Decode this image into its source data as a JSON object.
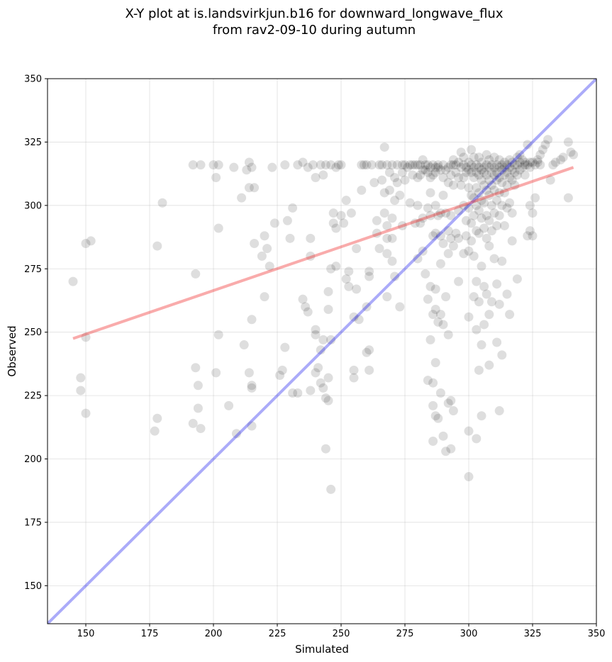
{
  "chart_data": {
    "type": "scatter",
    "title_line1": "X-Y plot at is.landsvirkjun.b16 for downward_longwave_flux",
    "title_line2": "from rav2-09-10 during autumn",
    "xlabel": "Simulated",
    "ylabel": "Observed",
    "xlim": [
      135,
      350
    ],
    "ylim": [
      135,
      350
    ],
    "xticks": [
      150,
      175,
      200,
      225,
      250,
      275,
      300,
      325,
      350
    ],
    "yticks": [
      150,
      175,
      200,
      225,
      250,
      275,
      300,
      325,
      350
    ],
    "grid": true,
    "colors": {
      "points": "#000000",
      "identity_line": "#0000ee",
      "fit_line": "#ee2222"
    },
    "identity_line": {
      "x": [
        135,
        350
      ],
      "y": [
        135,
        350
      ]
    },
    "fit_line": {
      "x": [
        145,
        341
      ],
      "y": [
        247.5,
        315
      ]
    },
    "points": [
      [
        145,
        270
      ],
      [
        150,
        285
      ],
      [
        152,
        286
      ],
      [
        148,
        232
      ],
      [
        148,
        227
      ],
      [
        150,
        248
      ],
      [
        150,
        218
      ],
      [
        178,
        284
      ],
      [
        180,
        301
      ],
      [
        178,
        216
      ],
      [
        177,
        211
      ],
      [
        192,
        316
      ],
      [
        195,
        316
      ],
      [
        200,
        316
      ],
      [
        201,
        311
      ],
      [
        202,
        316
      ],
      [
        193,
        273
      ],
      [
        193,
        236
      ],
      [
        194,
        229
      ],
      [
        194,
        220
      ],
      [
        192,
        214
      ],
      [
        195,
        212
      ],
      [
        202,
        291
      ],
      [
        202,
        249
      ],
      [
        201,
        234
      ],
      [
        206,
        221
      ],
      [
        209,
        210
      ],
      [
        208,
        315
      ],
      [
        211,
        303
      ],
      [
        213,
        314
      ],
      [
        214,
        317
      ],
      [
        214,
        307
      ],
      [
        215,
        315
      ],
      [
        216,
        307
      ],
      [
        216,
        285
      ],
      [
        215,
        255
      ],
      [
        212,
        245
      ],
      [
        214,
        234
      ],
      [
        215,
        229
      ],
      [
        215,
        228
      ],
      [
        215,
        213
      ],
      [
        219,
        280
      ],
      [
        220,
        288
      ],
      [
        220,
        264
      ],
      [
        221,
        283
      ],
      [
        222,
        276
      ],
      [
        223,
        315
      ],
      [
        224,
        293
      ],
      [
        226,
        233
      ],
      [
        227,
        235
      ],
      [
        228,
        244
      ],
      [
        228,
        316
      ],
      [
        229,
        294
      ],
      [
        230,
        287
      ],
      [
        231,
        299
      ],
      [
        231,
        226
      ],
      [
        233,
        226
      ],
      [
        235,
        263
      ],
      [
        236,
        260
      ],
      [
        237,
        258
      ],
      [
        238,
        287
      ],
      [
        238,
        280
      ],
      [
        238,
        227
      ],
      [
        240,
        251
      ],
      [
        240,
        249
      ],
      [
        240,
        234
      ],
      [
        241,
        236
      ],
      [
        242,
        230
      ],
      [
        242,
        243
      ],
      [
        243,
        247
      ],
      [
        243,
        228
      ],
      [
        244,
        224
      ],
      [
        244,
        204
      ],
      [
        245,
        223
      ],
      [
        245,
        232
      ],
      [
        245,
        259
      ],
      [
        245,
        266
      ],
      [
        246,
        275
      ],
      [
        246,
        247
      ],
      [
        247,
        297
      ],
      [
        247,
        293
      ],
      [
        248,
        276
      ],
      [
        248,
        291
      ],
      [
        246,
        188
      ],
      [
        233,
        316
      ],
      [
        235,
        317
      ],
      [
        237,
        315
      ],
      [
        239,
        316
      ],
      [
        240,
        311
      ],
      [
        242,
        316
      ],
      [
        243,
        312
      ],
      [
        244,
        316
      ],
      [
        246,
        316
      ],
      [
        248,
        315
      ],
      [
        249,
        316
      ],
      [
        250,
        316
      ],
      [
        250,
        296
      ],
      [
        251,
        293
      ],
      [
        252,
        302
      ],
      [
        252,
        271
      ],
      [
        253,
        274
      ],
      [
        253,
        268
      ],
      [
        254,
        297
      ],
      [
        255,
        256
      ],
      [
        255,
        235
      ],
      [
        255,
        232
      ],
      [
        256,
        283
      ],
      [
        256,
        267
      ],
      [
        257,
        255
      ],
      [
        258,
        316
      ],
      [
        258,
        306
      ],
      [
        259,
        316
      ],
      [
        260,
        316
      ],
      [
        260,
        260
      ],
      [
        260,
        242
      ],
      [
        261,
        274
      ],
      [
        261,
        272
      ],
      [
        261,
        243
      ],
      [
        261,
        235
      ],
      [
        262,
        316
      ],
      [
        263,
        309
      ],
      [
        264,
        294
      ],
      [
        264,
        289
      ],
      [
        265,
        283
      ],
      [
        265,
        316
      ],
      [
        266,
        316
      ],
      [
        266,
        310
      ],
      [
        267,
        323
      ],
      [
        267,
        305
      ],
      [
        267,
        297
      ],
      [
        268,
        316
      ],
      [
        268,
        292
      ],
      [
        268,
        287
      ],
      [
        268,
        281
      ],
      [
        268,
        264
      ],
      [
        269,
        313
      ],
      [
        269,
        306
      ],
      [
        270,
        316
      ],
      [
        270,
        295
      ],
      [
        270,
        287
      ],
      [
        270,
        278
      ],
      [
        271,
        311
      ],
      [
        271,
        302
      ],
      [
        271,
        272
      ],
      [
        272,
        316
      ],
      [
        272,
        309
      ],
      [
        273,
        304
      ],
      [
        273,
        260
      ],
      [
        274,
        316
      ],
      [
        274,
        313
      ],
      [
        274,
        292
      ],
      [
        275,
        316
      ],
      [
        275,
        310
      ],
      [
        276,
        315
      ],
      [
        277,
        316
      ],
      [
        277,
        301
      ],
      [
        278,
        316
      ],
      [
        278,
        312
      ],
      [
        279,
        316
      ],
      [
        279,
        293
      ],
      [
        280,
        316
      ],
      [
        280,
        311
      ],
      [
        280,
        300
      ],
      [
        280,
        279
      ],
      [
        281,
        316
      ],
      [
        281,
        312
      ],
      [
        281,
        293
      ],
      [
        282,
        318
      ],
      [
        282,
        314
      ],
      [
        282,
        295
      ],
      [
        282,
        282
      ],
      [
        283,
        316
      ],
      [
        283,
        314
      ],
      [
        283,
        273
      ],
      [
        284,
        316
      ],
      [
        284,
        313
      ],
      [
        284,
        299
      ],
      [
        284,
        263
      ],
      [
        284,
        231
      ],
      [
        285,
        315
      ],
      [
        285,
        311
      ],
      [
        285,
        305
      ],
      [
        285,
        296
      ],
      [
        285,
        268
      ],
      [
        285,
        247
      ],
      [
        286,
        316
      ],
      [
        286,
        312
      ],
      [
        286,
        288
      ],
      [
        286,
        257
      ],
      [
        286,
        230
      ],
      [
        286,
        221
      ],
      [
        286,
        207
      ],
      [
        287,
        315
      ],
      [
        287,
        313
      ],
      [
        287,
        300
      ],
      [
        287,
        289
      ],
      [
        287,
        267
      ],
      [
        287,
        259
      ],
      [
        287,
        238
      ],
      [
        287,
        217
      ],
      [
        288,
        316
      ],
      [
        288,
        315
      ],
      [
        288,
        296
      ],
      [
        288,
        254
      ],
      [
        288,
        216
      ],
      [
        289,
        314
      ],
      [
        289,
        297
      ],
      [
        289,
        288
      ],
      [
        289,
        277
      ],
      [
        289,
        257
      ],
      [
        289,
        226
      ],
      [
        290,
        316
      ],
      [
        290,
        311
      ],
      [
        290,
        304
      ],
      [
        290,
        285
      ],
      [
        290,
        253
      ],
      [
        290,
        209
      ],
      [
        291,
        314
      ],
      [
        291,
        297
      ],
      [
        291,
        264
      ],
      [
        291,
        203
      ],
      [
        292,
        315
      ],
      [
        292,
        309
      ],
      [
        292,
        290
      ],
      [
        292,
        281
      ],
      [
        292,
        249
      ],
      [
        292,
        222
      ],
      [
        293,
        316
      ],
      [
        293,
        312
      ],
      [
        293,
        296
      ],
      [
        293,
        287
      ],
      [
        293,
        223
      ],
      [
        293,
        204
      ],
      [
        294,
        316
      ],
      [
        294,
        318
      ],
      [
        294,
        308
      ],
      [
        294,
        284
      ],
      [
        294,
        219
      ],
      [
        295,
        316
      ],
      [
        295,
        313
      ],
      [
        295,
        289
      ],
      [
        296,
        317
      ],
      [
        296,
        311
      ],
      [
        296,
        298
      ],
      [
        296,
        287
      ],
      [
        296,
        270
      ],
      [
        297,
        321
      ],
      [
        297,
        315
      ],
      [
        297,
        308
      ],
      [
        298,
        319
      ],
      [
        298,
        316
      ],
      [
        298,
        311
      ],
      [
        298,
        300
      ],
      [
        298,
        281
      ],
      [
        299,
        315
      ],
      [
        299,
        313
      ],
      [
        299,
        294
      ],
      [
        299,
        288
      ],
      [
        300,
        317
      ],
      [
        300,
        314
      ],
      [
        300,
        307
      ],
      [
        300,
        299
      ],
      [
        300,
        282
      ],
      [
        300,
        256
      ],
      [
        300,
        211
      ],
      [
        300,
        193
      ],
      [
        301,
        322
      ],
      [
        301,
        316
      ],
      [
        301,
        313
      ],
      [
        301,
        304
      ],
      [
        301,
        293
      ],
      [
        301,
        286
      ],
      [
        302,
        319
      ],
      [
        302,
        315
      ],
      [
        302,
        311
      ],
      [
        302,
        303
      ],
      [
        302,
        296
      ],
      [
        302,
        280
      ],
      [
        302,
        264
      ],
      [
        303,
        316
      ],
      [
        303,
        313
      ],
      [
        303,
        307
      ],
      [
        303,
        300
      ],
      [
        303,
        290
      ],
      [
        303,
        270
      ],
      [
        303,
        251
      ],
      [
        303,
        208
      ],
      [
        304,
        319
      ],
      [
        304,
        315
      ],
      [
        304,
        312
      ],
      [
        304,
        305
      ],
      [
        304,
        298
      ],
      [
        304,
        289
      ],
      [
        304,
        262
      ],
      [
        304,
        235
      ],
      [
        305,
        317
      ],
      [
        305,
        314
      ],
      [
        305,
        310
      ],
      [
        305,
        302
      ],
      [
        305,
        295
      ],
      [
        305,
        276
      ],
      [
        305,
        245
      ],
      [
        305,
        217
      ],
      [
        306,
        315
      ],
      [
        306,
        313
      ],
      [
        306,
        308
      ],
      [
        306,
        301
      ],
      [
        306,
        291
      ],
      [
        306,
        268
      ],
      [
        306,
        253
      ],
      [
        307,
        320
      ],
      [
        307,
        316
      ],
      [
        307,
        312
      ],
      [
        307,
        306
      ],
      [
        307,
        296
      ],
      [
        307,
        287
      ],
      [
        307,
        265
      ],
      [
        308,
        318
      ],
      [
        308,
        315
      ],
      [
        308,
        310
      ],
      [
        308,
        304
      ],
      [
        308,
        294
      ],
      [
        308,
        284
      ],
      [
        308,
        257
      ],
      [
        308,
        237
      ],
      [
        309,
        316
      ],
      [
        309,
        313
      ],
      [
        309,
        308
      ],
      [
        309,
        300
      ],
      [
        309,
        290
      ],
      [
        309,
        262
      ],
      [
        310,
        319
      ],
      [
        310,
        315
      ],
      [
        310,
        312
      ],
      [
        310,
        306
      ],
      [
        310,
        297
      ],
      [
        310,
        279
      ],
      [
        311,
        316
      ],
      [
        311,
        313
      ],
      [
        311,
        310
      ],
      [
        311,
        302
      ],
      [
        311,
        292
      ],
      [
        311,
        269
      ],
      [
        311,
        246
      ],
      [
        312,
        318
      ],
      [
        312,
        315
      ],
      [
        312,
        311
      ],
      [
        312,
        305
      ],
      [
        312,
        296
      ],
      [
        312,
        261
      ],
      [
        312,
        219
      ],
      [
        313,
        316
      ],
      [
        313,
        314
      ],
      [
        313,
        309
      ],
      [
        313,
        300
      ],
      [
        313,
        278
      ],
      [
        313,
        241
      ],
      [
        314,
        317
      ],
      [
        314,
        315
      ],
      [
        314,
        312
      ],
      [
        314,
        305
      ],
      [
        314,
        292
      ],
      [
        315,
        316
      ],
      [
        315,
        313
      ],
      [
        315,
        308
      ],
      [
        315,
        299
      ],
      [
        315,
        265
      ],
      [
        316,
        318
      ],
      [
        316,
        315
      ],
      [
        316,
        311
      ],
      [
        316,
        301
      ],
      [
        316,
        257
      ],
      [
        317,
        317
      ],
      [
        317,
        314
      ],
      [
        317,
        310
      ],
      [
        317,
        297
      ],
      [
        317,
        286
      ],
      [
        318,
        316
      ],
      [
        318,
        313
      ],
      [
        318,
        308
      ],
      [
        319,
        319
      ],
      [
        319,
        316
      ],
      [
        319,
        312
      ],
      [
        319,
        271
      ],
      [
        320,
        320
      ],
      [
        320,
        317
      ],
      [
        320,
        314
      ],
      [
        321,
        318
      ],
      [
        321,
        315
      ],
      [
        322,
        317
      ],
      [
        322,
        316
      ],
      [
        322,
        312
      ],
      [
        323,
        324
      ],
      [
        323,
        316
      ],
      [
        323,
        288
      ],
      [
        324,
        317
      ],
      [
        324,
        315
      ],
      [
        324,
        300
      ],
      [
        324,
        290
      ],
      [
        325,
        317
      ],
      [
        325,
        297
      ],
      [
        325,
        288
      ],
      [
        326,
        316
      ],
      [
        326,
        303
      ],
      [
        327,
        318
      ],
      [
        327,
        317
      ],
      [
        328,
        320
      ],
      [
        328,
        316
      ],
      [
        329,
        322
      ],
      [
        330,
        324
      ],
      [
        331,
        326
      ],
      [
        332,
        310
      ],
      [
        333,
        316
      ],
      [
        334,
        317
      ],
      [
        336,
        318
      ],
      [
        337,
        319
      ],
      [
        339,
        325
      ],
      [
        340,
        321
      ],
      [
        339,
        303
      ],
      [
        341,
        320
      ]
    ]
  }
}
